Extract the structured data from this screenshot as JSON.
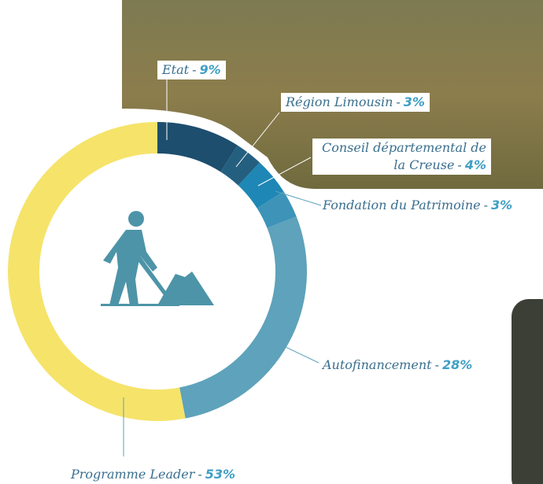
{
  "chart_data": {
    "type": "donut",
    "categories": [
      "Etat",
      "Région Limousin",
      "Conseil départemental de la Creuse",
      "Fondation du Patrimoine",
      "Autofinancement",
      "Programme Leader"
    ],
    "values": [
      9,
      3,
      4,
      3,
      28,
      53
    ],
    "value_labels": [
      "9%",
      "3%",
      "4%",
      "3%",
      "28%",
      "53%"
    ],
    "label_separator": "-",
    "colors": [
      "#1d4e6e",
      "#245f80",
      "#1f87b5",
      "#3d93b8",
      "#5ea2bb",
      "#f6e36a"
    ]
  }
}
